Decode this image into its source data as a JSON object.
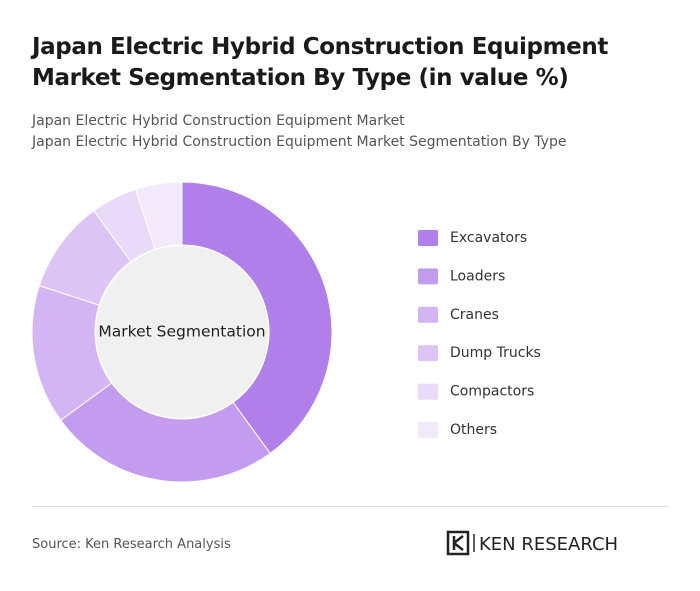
{
  "chart_data": {
    "type": "donut",
    "title": "Japan Electric Hybrid Construction Equipment Market Segmentation By Type (in value %)",
    "subtitle_lines": [
      "Japan Electric Hybrid Construction Equipment Market",
      "Japan Electric Hybrid Construction Equipment Market Segmentation By Type"
    ],
    "center_label": "Market Segmentation",
    "categories": [
      "Excavators",
      "Loaders",
      "Cranes",
      "Dump Trucks",
      "Compactors",
      "Others"
    ],
    "values": [
      40,
      25,
      15,
      10,
      5,
      5
    ],
    "colors": [
      "#b07fea",
      "#c39cf0",
      "#d3b5f4",
      "#dcc5f5",
      "#e8daf8",
      "#f2eafb"
    ],
    "source": "Source: Ken Research Analysis",
    "logo": "KEN RESEARCH"
  }
}
